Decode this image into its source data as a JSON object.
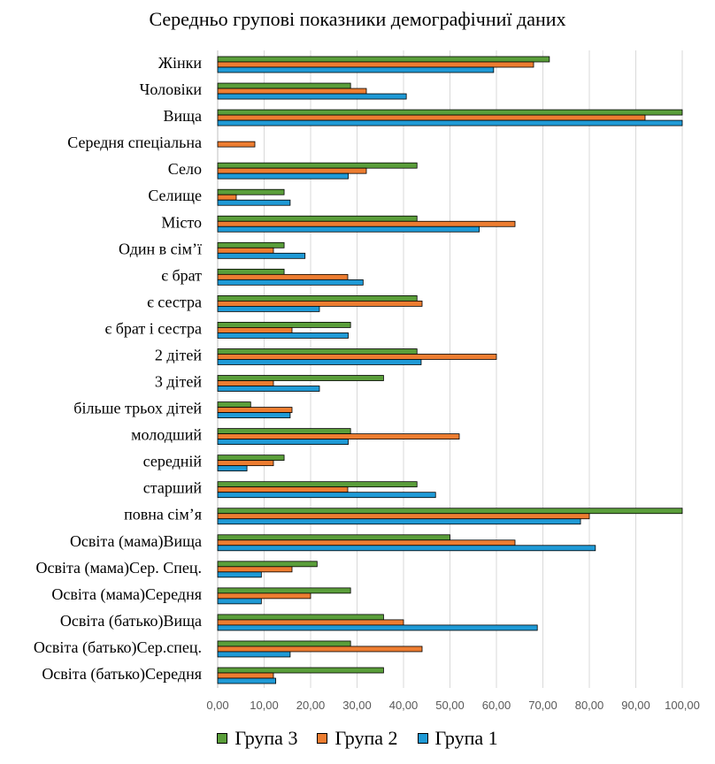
{
  "chart_data": {
    "type": "bar",
    "orientation": "horizontal",
    "title": "Середньо групові показники демографічниї даних",
    "categories": [
      "Жінки",
      "Чоловіки",
      "Вища",
      "Середня спеціальна",
      "Село",
      "Селище",
      "Місто",
      "Один в сім’ї",
      "є брат",
      "є сестра",
      "є брат і сестра",
      "2 дітей",
      "3 дітей",
      "більше трьох дітей",
      "молодший",
      "середній",
      "старший",
      "повна сім’я",
      "Освіта (мама)Вища",
      "Освіта (мама)Сер. Спец.",
      "Освіта (мама)Середня",
      "Освіта (батько)Вища",
      "Освіта (батько)Сер.спец.",
      "Освіта (батько)Середня"
    ],
    "series": [
      {
        "name": "Група 3",
        "color": "#5a9e3a",
        "values": [
          71.4,
          28.6,
          100,
          0,
          42.9,
          14.3,
          42.9,
          14.3,
          14.3,
          42.9,
          28.6,
          42.9,
          35.7,
          7.1,
          28.6,
          14.3,
          42.9,
          100,
          50,
          21.4,
          28.6,
          35.7,
          28.6,
          35.7
        ]
      },
      {
        "name": "Група 2",
        "color": "#ed7d31",
        "values": [
          68,
          32,
          92,
          8,
          32,
          4,
          64,
          12,
          28,
          44,
          16,
          60,
          12,
          16,
          52,
          12,
          28,
          80,
          64,
          16,
          20,
          40,
          44,
          12
        ]
      },
      {
        "name": "Група 1",
        "color": "#1f9ad6",
        "values": [
          59.4,
          40.6,
          100,
          0,
          28.1,
          15.6,
          56.3,
          18.8,
          31.3,
          21.9,
          28.1,
          43.8,
          21.9,
          15.6,
          28.1,
          6.3,
          46.9,
          78.1,
          81.3,
          9.4,
          9.4,
          68.8,
          15.6,
          12.5
        ]
      }
    ],
    "xlim": [
      0,
      100
    ],
    "xticks": [
      "0,00",
      "10,00",
      "20,00",
      "30,00",
      "40,00",
      "50,00",
      "60,00",
      "70,00",
      "80,00",
      "90,00",
      "100,00"
    ],
    "grid": true,
    "legend": "bottom"
  }
}
